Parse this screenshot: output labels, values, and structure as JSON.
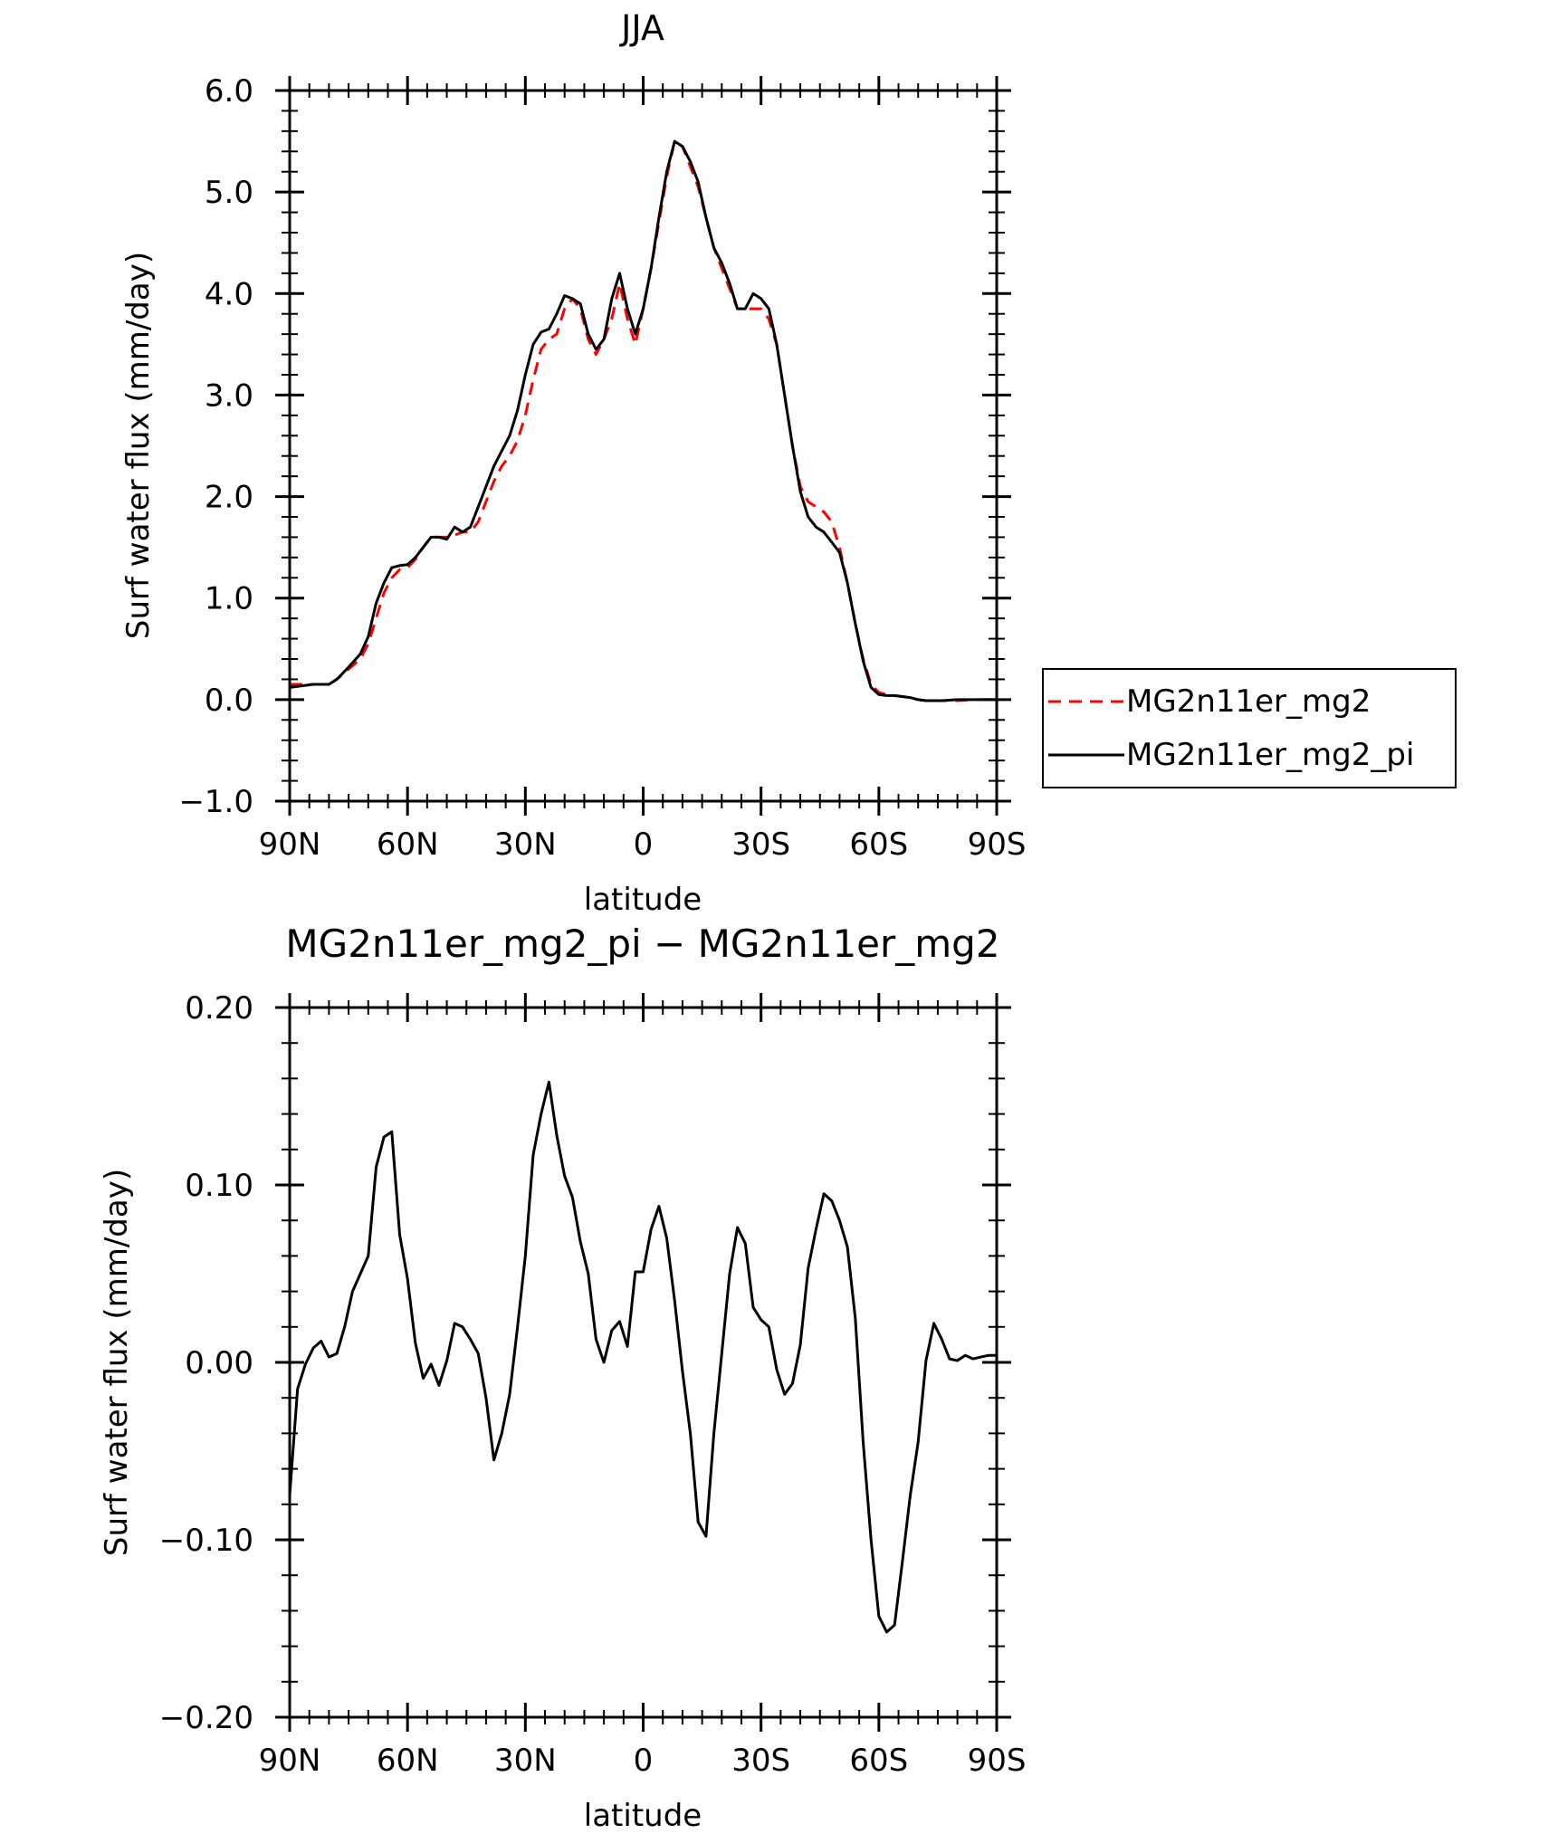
{
  "chart_data": [
    {
      "type": "line",
      "title": "JJA",
      "xlabel": "latitude",
      "ylabel": "Surf water flux (mm/day)",
      "xlim": [
        90,
        -90
      ],
      "ylim": [
        -1.0,
        6.0
      ],
      "x_ticks": [
        90,
        60,
        30,
        0,
        -30,
        -60,
        -90
      ],
      "x_tick_labels": [
        "90N",
        "60N",
        "30N",
        "0",
        "30S",
        "60S",
        "90S"
      ],
      "y_ticks": [
        -1.0,
        0.0,
        1.0,
        2.0,
        3.0,
        4.0,
        5.0,
        6.0
      ],
      "y_tick_labels": [
        "−1.0",
        "0.0",
        "1.0",
        "2.0",
        "3.0",
        "4.0",
        "5.0",
        "6.0"
      ],
      "legend_placement": "right",
      "series": [
        {
          "name": "MG2n11er_mg2",
          "color": "#ff0000",
          "dash": "dashed",
          "x": [
            90,
            84,
            80,
            78,
            75,
            72,
            70,
            68,
            66,
            64,
            62,
            60,
            58,
            56,
            54,
            52,
            50,
            48,
            46,
            44,
            42,
            40,
            38,
            36,
            34,
            32,
            30,
            28,
            26,
            24,
            22,
            20,
            18,
            16,
            14,
            12,
            10,
            8,
            6,
            4,
            2,
            0,
            -2,
            -4,
            -6,
            -8,
            -10,
            -12,
            -14,
            -16,
            -18,
            -20,
            -22,
            -24,
            -26,
            -28,
            -30,
            -32,
            -34,
            -36,
            -38,
            -40,
            -42,
            -44,
            -46,
            -48,
            -50,
            -52,
            -54,
            -56,
            -58,
            -60,
            -62,
            -64,
            -66,
            -68,
            -70,
            -72,
            -76,
            -80,
            -84,
            -90
          ],
          "y": [
            0.15,
            0.15,
            0.15,
            0.2,
            0.3,
            0.4,
            0.55,
            0.8,
            1.05,
            1.2,
            1.28,
            1.3,
            1.38,
            1.5,
            1.6,
            1.6,
            1.6,
            1.62,
            1.65,
            1.65,
            1.75,
            1.95,
            2.15,
            2.3,
            2.4,
            2.55,
            2.8,
            3.15,
            3.45,
            3.55,
            3.6,
            3.85,
            3.95,
            3.85,
            3.55,
            3.4,
            3.55,
            3.75,
            4.1,
            3.75,
            3.5,
            3.85,
            4.25,
            4.7,
            5.15,
            5.5,
            5.45,
            5.25,
            5.05,
            4.75,
            4.45,
            4.25,
            4.05,
            3.85,
            3.85,
            3.85,
            3.85,
            3.75,
            3.5,
            3.0,
            2.5,
            2.1,
            1.95,
            1.9,
            1.85,
            1.75,
            1.5,
            1.15,
            0.75,
            0.4,
            0.15,
            0.07,
            0.05,
            0.04,
            0.03,
            0.02,
            0.0,
            -0.01,
            -0.01,
            -0.01,
            0.0,
            0.0
          ]
        },
        {
          "name": "MG2n11er_mg2_pi",
          "color": "#000000",
          "dash": "solid",
          "x": [
            90,
            84,
            80,
            78,
            75,
            72,
            70,
            68,
            66,
            64,
            62,
            60,
            58,
            56,
            54,
            52,
            50,
            48,
            46,
            44,
            42,
            40,
            38,
            36,
            34,
            32,
            30,
            28,
            26,
            24,
            22,
            20,
            18,
            16,
            14,
            12,
            10,
            8,
            6,
            4,
            2,
            0,
            -2,
            -4,
            -6,
            -8,
            -10,
            -12,
            -14,
            -16,
            -18,
            -20,
            -22,
            -24,
            -26,
            -28,
            -30,
            -32,
            -34,
            -36,
            -38,
            -40,
            -42,
            -44,
            -46,
            -48,
            -50,
            -52,
            -54,
            -56,
            -58,
            -60,
            -62,
            -64,
            -66,
            -68,
            -70,
            -72,
            -76,
            -80,
            -84,
            -90
          ],
          "y": [
            0.12,
            0.15,
            0.15,
            0.2,
            0.32,
            0.45,
            0.62,
            0.95,
            1.15,
            1.3,
            1.32,
            1.33,
            1.4,
            1.5,
            1.6,
            1.6,
            1.58,
            1.7,
            1.65,
            1.7,
            1.9,
            2.1,
            2.3,
            2.45,
            2.6,
            2.85,
            3.2,
            3.5,
            3.62,
            3.65,
            3.8,
            3.98,
            3.95,
            3.9,
            3.6,
            3.45,
            3.55,
            3.95,
            4.2,
            3.85,
            3.6,
            3.85,
            4.25,
            4.75,
            5.2,
            5.5,
            5.45,
            5.3,
            5.1,
            4.75,
            4.45,
            4.3,
            4.1,
            3.85,
            3.85,
            4.0,
            3.95,
            3.85,
            3.5,
            3.0,
            2.5,
            2.05,
            1.8,
            1.7,
            1.65,
            1.55,
            1.45,
            1.15,
            0.75,
            0.38,
            0.12,
            0.05,
            0.04,
            0.04,
            0.03,
            0.02,
            0.0,
            -0.01,
            -0.01,
            0.0,
            0.0,
            0.0
          ]
        }
      ]
    },
    {
      "type": "line",
      "title": "MG2n11er_mg2_pi − MG2n11er_mg2",
      "xlabel": "latitude",
      "ylabel": "Surf water flux (mm/day)",
      "xlim": [
        90,
        -90
      ],
      "ylim": [
        -0.2,
        0.2
      ],
      "x_ticks": [
        90,
        60,
        30,
        0,
        -30,
        -60,
        -90
      ],
      "x_tick_labels": [
        "90N",
        "60N",
        "30N",
        "0",
        "30S",
        "60S",
        "90S"
      ],
      "y_ticks": [
        -0.2,
        -0.1,
        0.0,
        0.1,
        0.2
      ],
      "y_tick_labels": [
        "−0.20",
        "−0.10",
        "0.00",
        "0.10",
        "0.20"
      ],
      "zero_line": true,
      "series": [
        {
          "color": "#000000",
          "dash": "solid",
          "x": [
            90,
            88,
            86,
            84,
            82,
            80,
            78,
            76,
            74,
            72,
            70,
            68,
            66,
            64,
            62,
            60,
            58,
            56,
            54,
            52,
            50,
            48,
            46,
            44,
            42,
            40,
            38,
            36,
            34,
            32,
            30,
            28,
            26,
            24,
            22,
            20,
            18,
            16,
            14,
            12,
            10,
            8,
            6,
            4,
            2,
            0,
            -2,
            -4,
            -6,
            -8,
            -10,
            -12,
            -14,
            -16,
            -18,
            -20,
            -22,
            -24,
            -26,
            -28,
            -30,
            -32,
            -34,
            -36,
            -38,
            -40,
            -42,
            -44,
            -46,
            -48,
            -50,
            -52,
            -54,
            -56,
            -58,
            -60,
            -62,
            -64,
            -66,
            -68,
            -70,
            -72,
            -74,
            -76,
            -78,
            -80,
            -82,
            -84,
            -86,
            -88,
            -90
          ],
          "y": [
            -0.075,
            -0.015,
            -0.001,
            0.008,
            0.012,
            0.003,
            0.005,
            0.02,
            0.04,
            0.05,
            0.06,
            0.11,
            0.127,
            0.13,
            0.072,
            0.047,
            0.011,
            -0.009,
            -0.001,
            -0.013,
            0.001,
            0.022,
            0.02,
            0.013,
            0.005,
            -0.02,
            -0.055,
            -0.04,
            -0.018,
            0.02,
            0.06,
            0.117,
            0.14,
            0.158,
            0.128,
            0.105,
            0.093,
            0.068,
            0.05,
            0.013,
            0.0,
            0.018,
            0.023,
            0.009,
            0.051,
            0.051,
            0.075,
            0.088,
            0.07,
            0.035,
            -0.005,
            -0.04,
            -0.09,
            -0.098,
            -0.04,
            0.005,
            0.05,
            0.076,
            0.067,
            0.031,
            0.024,
            0.02,
            -0.004,
            -0.018,
            -0.012,
            0.01,
            0.053,
            0.075,
            0.095,
            0.091,
            0.08,
            0.065,
            0.025,
            -0.045,
            -0.1,
            -0.143,
            -0.152,
            -0.148,
            -0.112,
            -0.075,
            -0.045,
            0.001,
            0.022,
            0.013,
            0.002,
            0.001,
            0.004,
            0.002,
            0.003,
            0.004,
            0.004
          ]
        }
      ]
    }
  ]
}
